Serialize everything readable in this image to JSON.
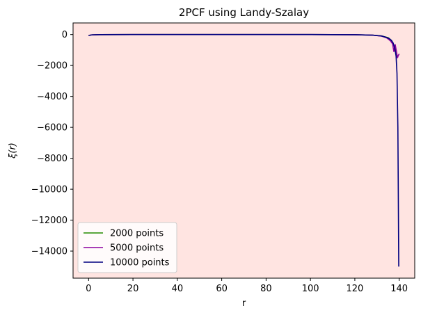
{
  "chart_data": {
    "type": "line",
    "title": "2PCF using Landy-Szalay",
    "xlabel": "r",
    "ylabel": "ξ(r)",
    "xlim": [
      -7,
      147
    ],
    "ylim": [
      -15750,
      750
    ],
    "xticks": [
      0,
      20,
      40,
      60,
      80,
      100,
      120,
      140
    ],
    "yticks": [
      0,
      -2000,
      -4000,
      -6000,
      -8000,
      -10000,
      -12000,
      -14000
    ],
    "ytick_labels": [
      "0",
      "−2000",
      "−4000",
      "−6000",
      "−8000",
      "−10000",
      "−12000",
      "−14000"
    ],
    "grid": false,
    "background": "#ffe4e1",
    "legend_position": "lower-left",
    "series": [
      {
        "name": "2000 points",
        "color": "#228b00",
        "x": [
          0,
          1.5,
          5,
          20,
          40,
          60,
          80,
          100,
          120,
          128,
          132,
          135,
          136.5,
          137.5,
          138.2,
          138.8,
          139.3
        ],
        "y": [
          -60,
          -20,
          -5,
          0,
          0,
          0,
          0,
          0,
          -10,
          -40,
          -90,
          -200,
          -380,
          -650,
          -900,
          -1200,
          -1500
        ]
      },
      {
        "name": "5000 points",
        "color": "#8b00a0",
        "x": [
          0,
          1.5,
          5,
          20,
          40,
          60,
          80,
          100,
          120,
          128,
          132,
          134.5,
          136,
          137,
          137.6,
          138.2,
          138.7,
          139.2,
          139.6,
          140
        ],
        "y": [
          -60,
          -20,
          -5,
          0,
          0,
          0,
          0,
          0,
          -10,
          -40,
          -100,
          -230,
          -400,
          -600,
          -1100,
          -650,
          -1050,
          -1500,
          -1350,
          -1250
        ]
      },
      {
        "name": "10000 points",
        "color": "#000080",
        "x": [
          0,
          1.5,
          5,
          20,
          40,
          60,
          80,
          100,
          120,
          128,
          132,
          134,
          135.5,
          136.5,
          137.3,
          138,
          138.6,
          139,
          139.4,
          139.6,
          139.8
        ],
        "y": [
          -60,
          -20,
          -5,
          0,
          0,
          0,
          0,
          0,
          -10,
          -40,
          -90,
          -170,
          -260,
          -380,
          -550,
          -900,
          -1400,
          -2500,
          -6000,
          -10500,
          -15000
        ]
      }
    ]
  }
}
